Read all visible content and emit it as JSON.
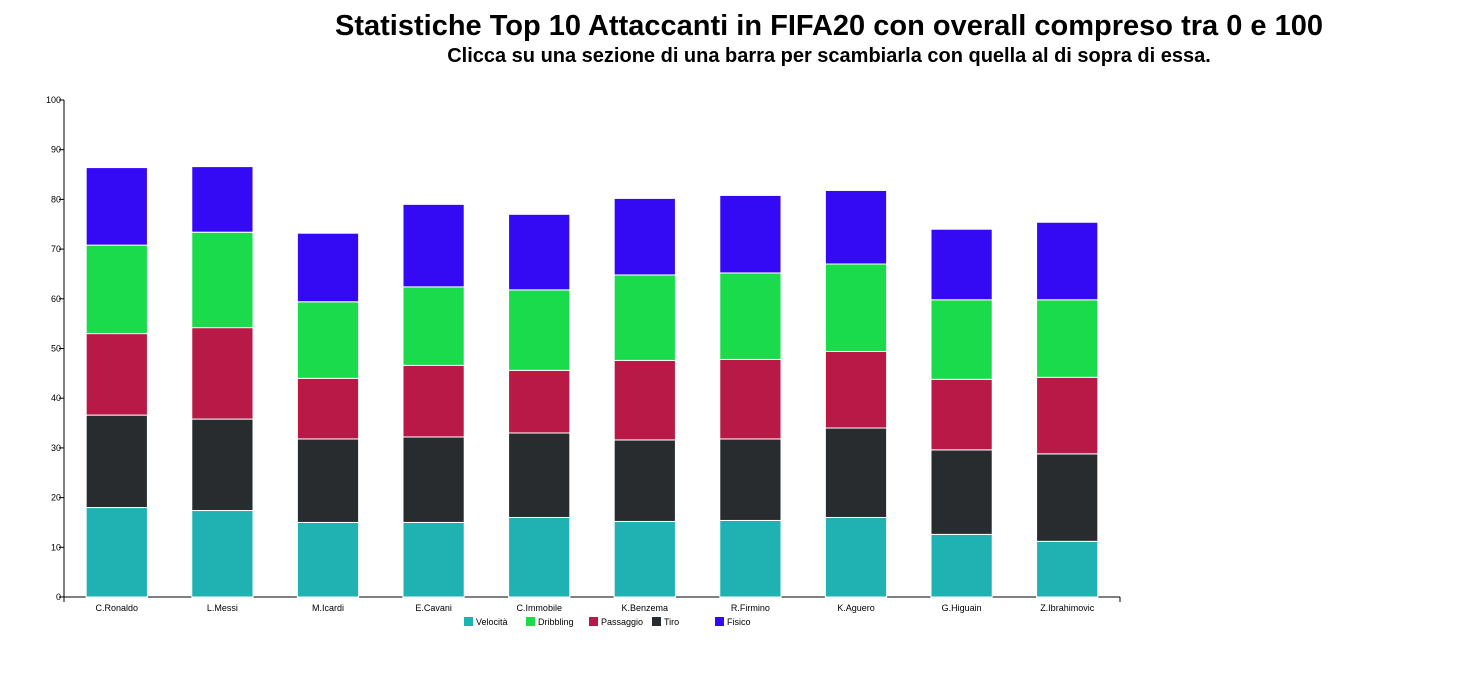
{
  "header": {
    "title": "Statistiche Top 10 Attaccanti in FIFA20 con overall compreso tra 0 e 100",
    "subtitle": "Clicca su una sezione di una barra per scambiarla con quella al di sopra di essa."
  },
  "chart_data": {
    "type": "bar",
    "stacked": true,
    "ylim": [
      0,
      100
    ],
    "yticks": [
      0,
      10,
      20,
      30,
      40,
      50,
      60,
      70,
      80,
      90,
      100
    ],
    "categories": [
      "C.Ronaldo",
      "L.Messi",
      "M.Icardi",
      "E.Cavani",
      "C.Immobile",
      "K.Benzema",
      "R.Firmino",
      "K.Aguero",
      "G.Higuain",
      "Z.Ibrahimovic"
    ],
    "series": [
      {
        "name": "Velocità",
        "color": "#20b2b2",
        "values": [
          18.0,
          17.4,
          15.0,
          15.0,
          16.0,
          15.2,
          15.4,
          16.0,
          12.6,
          11.2
        ]
      },
      {
        "name": "Tiro",
        "color": "#292c2e",
        "values": [
          18.6,
          18.4,
          16.8,
          17.2,
          17.0,
          16.4,
          16.4,
          18.0,
          17.0,
          17.6
        ]
      },
      {
        "name": "Passaggio",
        "color": "#b81947",
        "values": [
          16.4,
          18.4,
          12.2,
          14.4,
          12.6,
          16.0,
          16.0,
          15.4,
          14.2,
          15.4
        ]
      },
      {
        "name": "Dribbling",
        "color": "#1adb4b",
        "values": [
          17.8,
          19.2,
          15.4,
          15.8,
          16.2,
          17.2,
          17.4,
          17.6,
          16.0,
          15.6
        ]
      },
      {
        "name": "Fisico",
        "color": "#340af5",
        "values": [
          15.6,
          13.2,
          13.8,
          16.6,
          15.2,
          15.4,
          15.6,
          14.8,
          14.2,
          15.6
        ]
      }
    ],
    "legend": {
      "placement": "bottom",
      "entries": [
        {
          "name": "Velocità",
          "color": "#20b2b2"
        },
        {
          "name": "Dribbling",
          "color": "#1adb4b"
        },
        {
          "name": "Passaggio",
          "color": "#b81947"
        },
        {
          "name": "Tiro",
          "color": "#292c2e"
        },
        {
          "name": "Fisico",
          "color": "#340af5"
        }
      ]
    },
    "grid": false
  }
}
